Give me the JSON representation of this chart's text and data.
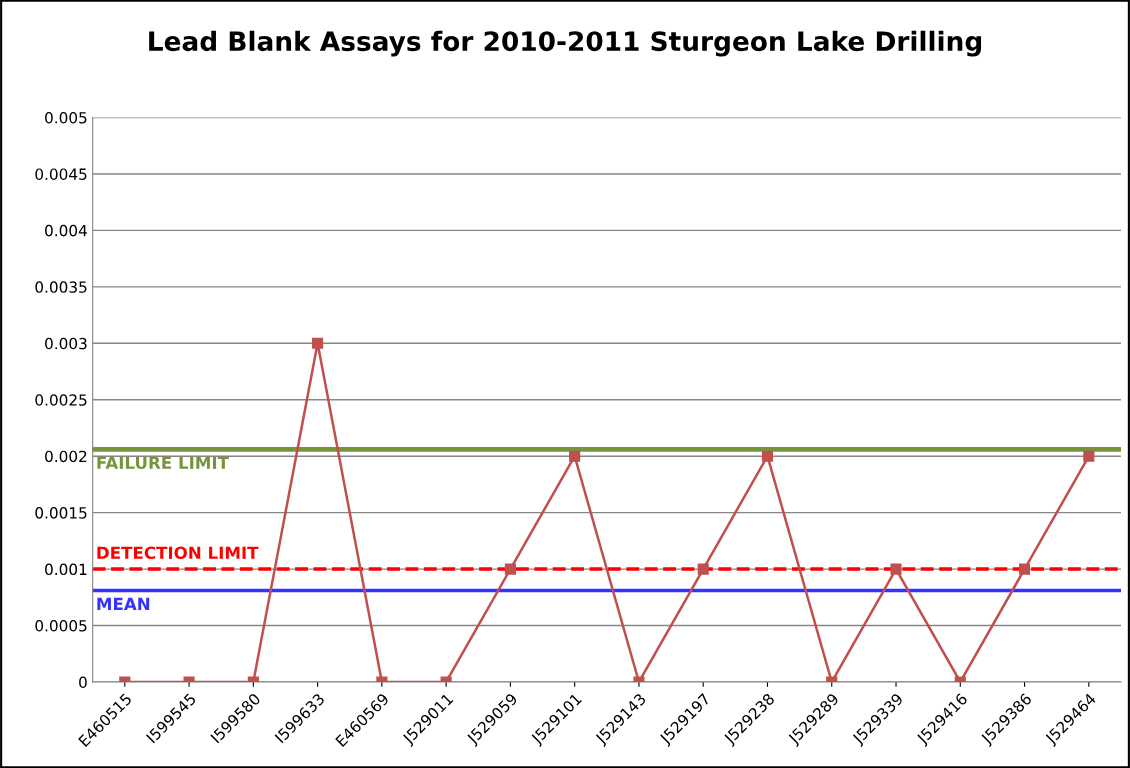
{
  "chart_data": {
    "type": "line",
    "title": "Lead Blank Assays for 2010-2011 Sturgeon Lake Drilling",
    "categories": [
      "E460515",
      "I599545",
      "I599580",
      "I599633",
      "E460569",
      "J529011",
      "J529059",
      "J529101",
      "J529143",
      "J529197",
      "J529238",
      "J529289",
      "J529339",
      "J529416",
      "J529386",
      "J529464"
    ],
    "series": [
      {
        "color": "#c0504d",
        "values": [
          0,
          0,
          0,
          0.003,
          0,
          0,
          0.001,
          0.002,
          0,
          0.001,
          0.002,
          0,
          0.001,
          0,
          0.001,
          0.002
        ]
      }
    ],
    "ylim": [
      0,
      0.005
    ],
    "yticks": [
      0,
      0.0005,
      0.001,
      0.0015,
      0.002,
      0.0025,
      0.003,
      0.0035,
      0.004,
      0.0045,
      0.005
    ],
    "grid": "y",
    "marker": "square",
    "line_style": "solid",
    "ref_lines": [
      {
        "axis": "y",
        "value": 0.00206,
        "label": "FAILURE LIMIT",
        "color": "#77933c",
        "line_style": "solid"
      },
      {
        "axis": "y",
        "value": 0.001,
        "label": "DETECTION LIMIT",
        "color": "#ff0000",
        "line_style": "dashed"
      },
      {
        "axis": "y",
        "value": 0.00081,
        "label": "MEAN",
        "color": "#3333ff",
        "line_style": "solid"
      }
    ]
  }
}
